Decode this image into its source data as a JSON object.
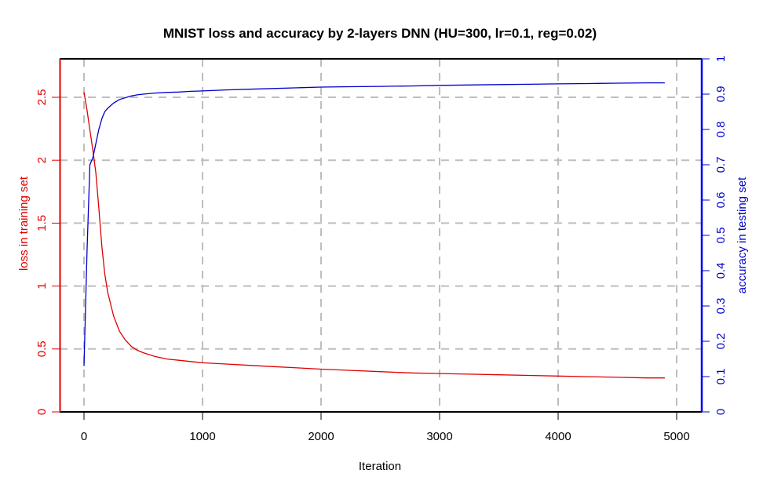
{
  "chart_data": {
    "type": "line",
    "title": "MNIST loss and accuracy by 2-layers DNN (HU=300, lr=0.1, reg=0.02)",
    "xlabel": "Iteration",
    "ylabel_left": "loss in training set",
    "ylabel_right": "accuracy in testing set",
    "xlim": [
      -200,
      5200
    ],
    "ylim_left": [
      0,
      2.8
    ],
    "ylim_right": [
      0,
      1
    ],
    "grid": true,
    "x_ticks": [
      "0",
      "1000",
      "2000",
      "3000",
      "4000",
      "5000"
    ],
    "y_left_ticks": [
      "0",
      "0.5",
      "1",
      "1.5",
      "2",
      "2.5"
    ],
    "y_right_ticks": [
      "0",
      "0.1",
      "0.2",
      "0.3",
      "0.4",
      "0.5",
      "0.6",
      "0.7",
      "0.8",
      "0.9",
      "1"
    ],
    "colors": {
      "loss": "#e00000",
      "accuracy": "#0000cc",
      "grid": "#bebebe",
      "frame": "#000000"
    },
    "x": [
      0,
      25,
      50,
      75,
      100,
      125,
      150,
      175,
      200,
      250,
      300,
      350,
      400,
      450,
      500,
      600,
      700,
      800,
      900,
      1000,
      1200,
      1400,
      1600,
      1800,
      2000,
      2250,
      2500,
      2750,
      3000,
      3250,
      3500,
      3750,
      4000,
      4250,
      4500,
      4750,
      4900
    ],
    "series": [
      {
        "name": "loss in training set",
        "axis": "left",
        "values": [
          2.54,
          2.4,
          2.24,
          2.08,
          1.9,
          1.62,
          1.32,
          1.1,
          0.95,
          0.76,
          0.64,
          0.57,
          0.52,
          0.49,
          0.47,
          0.44,
          0.42,
          0.41,
          0.4,
          0.39,
          0.38,
          0.37,
          0.36,
          0.35,
          0.34,
          0.33,
          0.32,
          0.31,
          0.305,
          0.3,
          0.295,
          0.29,
          0.285,
          0.28,
          0.275,
          0.27,
          0.27
        ]
      },
      {
        "name": "accuracy in testing set",
        "axis": "right",
        "values": [
          0.13,
          0.45,
          0.7,
          0.72,
          0.76,
          0.8,
          0.83,
          0.85,
          0.86,
          0.875,
          0.885,
          0.89,
          0.895,
          0.898,
          0.9,
          0.903,
          0.905,
          0.906,
          0.908,
          0.909,
          0.912,
          0.914,
          0.916,
          0.918,
          0.92,
          0.921,
          0.922,
          0.923,
          0.925,
          0.926,
          0.927,
          0.928,
          0.929,
          0.93,
          0.931,
          0.932,
          0.932
        ]
      }
    ]
  }
}
